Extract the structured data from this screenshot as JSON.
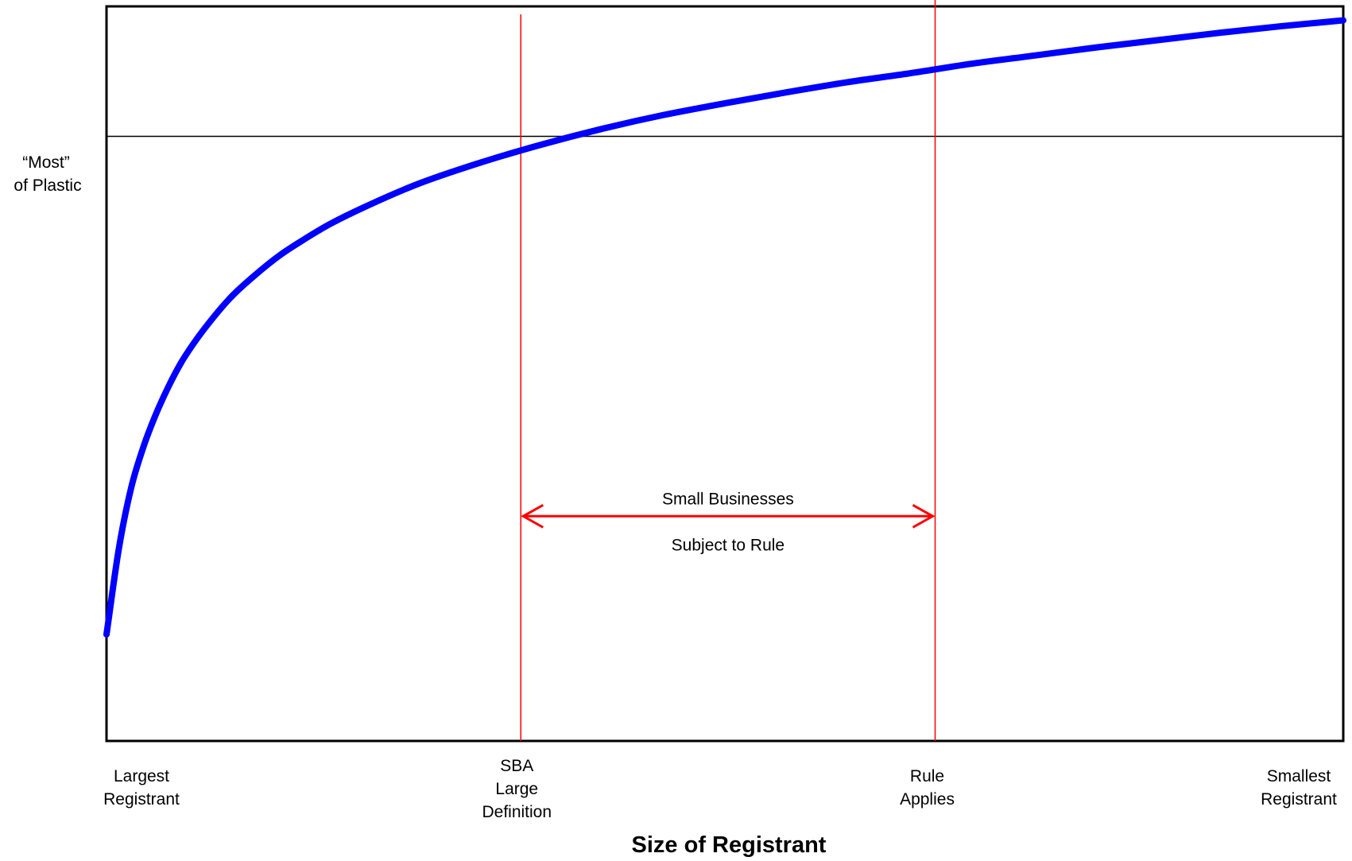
{
  "chart_data": {
    "type": "line",
    "title": "",
    "xlabel": "Size of Registrant",
    "ylabel": "",
    "grid": false,
    "legend": "none",
    "xlim": [
      0,
      100
    ],
    "ylim": [
      0,
      100
    ],
    "series": [
      {
        "color": "#0000ff",
        "x": [
          0,
          1,
          2,
          3,
          4,
          5,
          6,
          7,
          8,
          10,
          12,
          14,
          16,
          18,
          20,
          25,
          30,
          35,
          40,
          45,
          50,
          55,
          60,
          65,
          70,
          75,
          80,
          85,
          90,
          95,
          100
        ],
        "y": [
          14.5,
          26.2,
          34.5,
          40.1,
          44.5,
          48.2,
          51.4,
          54.0,
          56.3,
          60.3,
          63.4,
          66.1,
          68.3,
          70.3,
          72.0,
          75.7,
          78.6,
          81.1,
          83.3,
          85.2,
          86.8,
          88.3,
          89.7,
          90.9,
          92.2,
          93.3,
          94.4,
          95.4,
          96.4,
          97.3,
          98.1
        ]
      }
    ],
    "reference_lines": [
      {
        "axis": "y",
        "value": 82.3,
        "color": "#000000"
      },
      {
        "axis": "x",
        "value": 33.5,
        "color": "#ff0000"
      },
      {
        "axis": "x",
        "value": 67.0,
        "color": "#ff0000"
      }
    ],
    "range_arrow": {
      "from": 33.5,
      "to": 67.0,
      "y": 30.6,
      "color": "#ff0000"
    },
    "y_annotation": [
      "“Most”",
      "of Plastic"
    ],
    "arrow_labels": [
      "Small Businesses",
      "Subject to Rule"
    ],
    "x_tick_labels": [
      {
        "value": 0,
        "lines": [
          "Largest",
          "Registrant"
        ]
      },
      {
        "value": 33.5,
        "lines": [
          "SBA",
          "Large",
          "Definition"
        ]
      },
      {
        "value": 67.0,
        "lines": [
          "Rule",
          "Applies"
        ]
      },
      {
        "value": 100,
        "lines": [
          "Smallest",
          "Registrant"
        ]
      }
    ]
  }
}
